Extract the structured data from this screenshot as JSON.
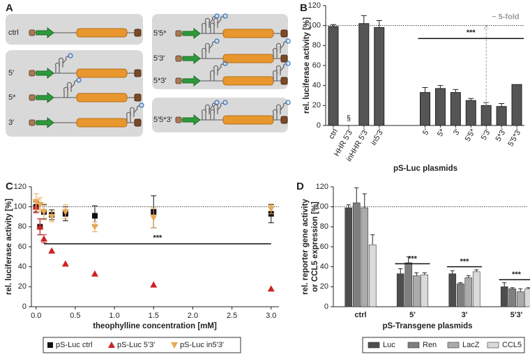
{
  "panel_labels": [
    "A",
    "B",
    "C",
    "D"
  ],
  "diagram": {
    "constructs": [
      "ctrl",
      "5′",
      "5*",
      "3′",
      "5′5*",
      "5′3′",
      "5*3′",
      "5′5*3′"
    ]
  },
  "chart_data": [
    {
      "type": "bar",
      "categories": [
        "ctrl",
        "HHR 5'3'",
        "inHHR 5'3'",
        "in5'3'",
        null,
        null,
        "5'",
        "5*",
        "3'",
        "5'5*",
        "5'3'",
        "5*3'",
        "5'5*3'"
      ],
      "values": [
        99,
        null,
        102,
        98,
        null,
        null,
        33,
        37,
        33,
        25,
        20,
        19,
        41
      ],
      "errors": [
        2,
        null,
        8,
        7,
        null,
        null,
        5,
        3,
        3,
        2,
        3,
        3,
        0
      ],
      "color": "#555555",
      "ylim": [
        0,
        120
      ],
      "yticks": [
        0,
        20,
        40,
        60,
        80,
        100,
        120
      ],
      "ylabel": "rel. luciferase activity [%]",
      "xlabel": "pS-Luc plasmids",
      "reference_line": 100,
      "missing_label": "§",
      "significance_bar": {
        "y": 87,
        "label": "***"
      },
      "fold_arrow": {
        "from": 100,
        "to": 20,
        "label": "~ 5-fold"
      }
    },
    {
      "type": "scatter",
      "xlim": [
        -0.06,
        3.1
      ],
      "xticks": [
        {
          "value": 0,
          "label": "0.0"
        },
        {
          "value": 0.5,
          "label": "0.5"
        },
        {
          "value": 1,
          "label": "1.0"
        },
        {
          "value": 1.5,
          "label": "1.5"
        },
        {
          "value": 2,
          "label": "2.0"
        },
        {
          "value": 2.5,
          "label": "2.5"
        },
        {
          "value": 3,
          "label": "3.0"
        }
      ],
      "ylim": [
        0,
        120
      ],
      "yticks": [
        0,
        20,
        40,
        60,
        80,
        100,
        120
      ],
      "ylabel": "rel. luciferase activity [%]",
      "xlabel": "theophylline concentration [mM]",
      "reference_line": 100,
      "significance_bar": {
        "y": 63,
        "x": [
          0.1,
          3.0
        ],
        "label": "***"
      },
      "series": [
        {
          "name": "pS-Luc ctrl",
          "color": "#111111",
          "marker": "square",
          "x": [
            0,
            0.05,
            0.1,
            0.2,
            0.375,
            0.75,
            1.5,
            3.0
          ],
          "values": [
            100,
            80,
            95,
            92,
            93,
            91,
            95,
            93
          ],
          "errors": [
            5,
            8,
            7,
            5,
            7,
            10,
            16,
            9
          ]
        },
        {
          "name": "pS-Luc 5'3'",
          "color": "#cc2222",
          "marker": "triangle",
          "x": [
            0,
            0.05,
            0.1,
            0.2,
            0.375,
            0.75,
            1.5,
            3.0
          ],
          "values": [
            100,
            80,
            68,
            56,
            43,
            33,
            22,
            18
          ],
          "errors": [
            6,
            8,
            4,
            0,
            0,
            0,
            0,
            0
          ]
        },
        {
          "name": "pS-Luc in5'3'",
          "color": "#e8a855",
          "marker": "triangle-down",
          "x": [
            0,
            0.05,
            0.1,
            0.2,
            0.375,
            0.75,
            1.5,
            3.0
          ],
          "values": [
            105,
            102,
            95,
            90,
            95,
            80,
            89,
            98
          ],
          "errors": [
            8,
            7,
            8,
            5,
            7,
            5,
            10,
            5
          ]
        }
      ]
    },
    {
      "type": "bar",
      "categories": [
        "ctrl",
        "5'",
        "3'",
        "5'3'"
      ],
      "ylim": [
        0,
        120
      ],
      "yticks": [
        0,
        20,
        40,
        60,
        80,
        100,
        120
      ],
      "ylabel": [
        "rel. reporter gene activity",
        "or CCL5 expression [%]"
      ],
      "xlabel": "pS-Transgene plasmids",
      "reference_line": 100,
      "significance_bars": [
        {
          "y": 43,
          "label": "***"
        },
        {
          "y": 40,
          "label": "***"
        },
        {
          "y": 27,
          "label": "***"
        }
      ],
      "series": [
        {
          "name": "Luc",
          "color": "#4d4d4d",
          "values": [
            99,
            33,
            33,
            20
          ],
          "errors": [
            3,
            5,
            3,
            4
          ]
        },
        {
          "name": "Ren",
          "color": "#7f7f7f",
          "values": [
            104,
            44,
            23,
            18
          ],
          "errors": [
            15,
            6,
            1,
            1
          ]
        },
        {
          "name": "LacZ",
          "color": "#ababab",
          "values": [
            99,
            31,
            29,
            15
          ],
          "errors": [
            14,
            3,
            2,
            3
          ]
        },
        {
          "name": "CCL5",
          "color": "#dadada",
          "values": [
            62,
            32,
            35,
            18
          ],
          "errors": [
            10,
            2,
            2,
            1
          ]
        }
      ]
    }
  ]
}
